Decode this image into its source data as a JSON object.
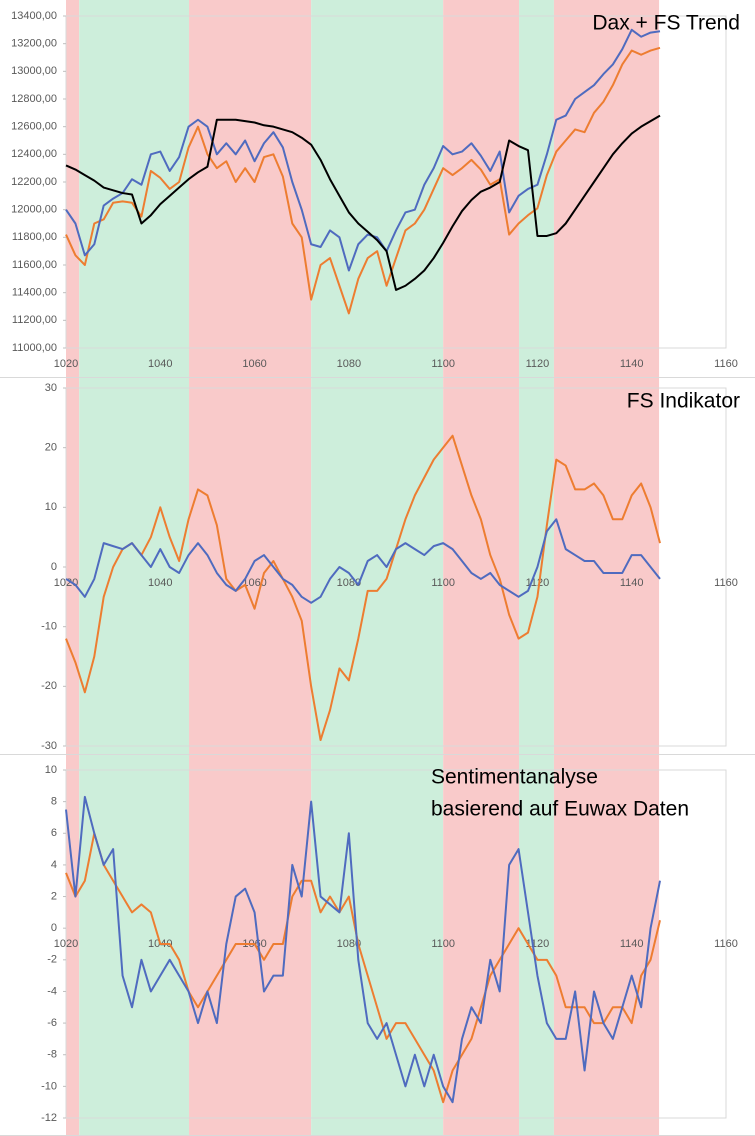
{
  "chart_data": [
    {
      "type": "line",
      "title": "Dax + FS Trend",
      "xlim": [
        1020,
        1160
      ],
      "xticks": [
        1020,
        1040,
        1060,
        1080,
        1100,
        1120,
        1140,
        1160
      ],
      "ylim": [
        11000,
        13400
      ],
      "yticks": [
        {
          "value": 11000,
          "label": "11000,00"
        },
        {
          "value": 11200,
          "label": "11200,00"
        },
        {
          "value": 11400,
          "label": "11400,00"
        },
        {
          "value": 11600,
          "label": "11600,00"
        },
        {
          "value": 11800,
          "label": "11800,00"
        },
        {
          "value": 12000,
          "label": "12000,00"
        },
        {
          "value": 12200,
          "label": "12200,00"
        },
        {
          "value": 12400,
          "label": "12400,00"
        },
        {
          "value": 12600,
          "label": "12600,00"
        },
        {
          "value": 12800,
          "label": "12800,00"
        },
        {
          "value": 13000,
          "label": "13000,00"
        },
        {
          "value": 13200,
          "label": "13200,00"
        },
        {
          "value": 13400,
          "label": "13400,00"
        }
      ],
      "regions": [
        {
          "start": 1020,
          "end": 1022.8,
          "color": "#f9caca"
        },
        {
          "start": 1022.8,
          "end": 1046.1,
          "color": "#cdeedb"
        },
        {
          "start": 1046.1,
          "end": 1072,
          "color": "#f9caca"
        },
        {
          "start": 1072,
          "end": 1100,
          "color": "#cdeedb"
        },
        {
          "start": 1100,
          "end": 1116.1,
          "color": "#f9caca"
        },
        {
          "start": 1116.1,
          "end": 1123.5,
          "color": "#cdeedb"
        },
        {
          "start": 1123.5,
          "end": 1145.8,
          "color": "#f9caca"
        }
      ],
      "x": [
        1020,
        1022,
        1024,
        1026,
        1028,
        1030,
        1032,
        1034,
        1036,
        1038,
        1040,
        1042,
        1044,
        1046,
        1048,
        1050,
        1052,
        1054,
        1056,
        1058,
        1060,
        1062,
        1064,
        1066,
        1068,
        1070,
        1072,
        1074,
        1076,
        1078,
        1080,
        1082,
        1084,
        1086,
        1088,
        1090,
        1092,
        1094,
        1096,
        1098,
        1100,
        1102,
        1104,
        1106,
        1108,
        1110,
        1112,
        1114,
        1116,
        1118,
        1120,
        1122,
        1124,
        1126,
        1128,
        1130,
        1132,
        1134,
        1136,
        1138,
        1140,
        1142,
        1144,
        1146
      ],
      "series": [
        {
          "color": "#ed7d31",
          "values": [
            11820,
            11670,
            11600,
            11900,
            11930,
            12050,
            12060,
            12050,
            11950,
            12280,
            12230,
            12150,
            12200,
            12450,
            12600,
            12400,
            12300,
            12350,
            12200,
            12300,
            12200,
            12380,
            12400,
            12240,
            11900,
            11800,
            11350,
            11600,
            11650,
            11450,
            11250,
            11500,
            11650,
            11700,
            11450,
            11650,
            11850,
            11900,
            12000,
            12150,
            12300,
            12250,
            12300,
            12360,
            12290,
            12180,
            12220,
            11820,
            11900,
            11960,
            12010,
            12250,
            12420,
            12500,
            12580,
            12560,
            12700,
            12780,
            12900,
            13050,
            13150,
            13120,
            13150,
            13170
          ]
        },
        {
          "color": "#4f6bbf",
          "values": [
            12000,
            11900,
            11670,
            11750,
            12030,
            12080,
            12120,
            12220,
            12180,
            12400,
            12420,
            12280,
            12380,
            12600,
            12650,
            12600,
            12400,
            12480,
            12400,
            12500,
            12350,
            12480,
            12560,
            12450,
            12200,
            12000,
            11750,
            11730,
            11850,
            11800,
            11560,
            11750,
            11820,
            11800,
            11700,
            11850,
            11980,
            12000,
            12180,
            12300,
            12460,
            12400,
            12420,
            12480,
            12390,
            12280,
            12420,
            11980,
            12100,
            12150,
            12180,
            12400,
            12650,
            12680,
            12800,
            12850,
            12900,
            12980,
            13050,
            13160,
            13300,
            13250,
            13280,
            13290
          ]
        },
        {
          "color": "#000000",
          "values": [
            12320,
            12290,
            12250,
            12210,
            12160,
            12140,
            12120,
            12110,
            11900,
            11960,
            12040,
            12100,
            12160,
            12220,
            12270,
            12310,
            12650,
            12650,
            12650,
            12640,
            12630,
            12610,
            12600,
            12580,
            12560,
            12520,
            12470,
            12360,
            12220,
            12100,
            11980,
            11900,
            11840,
            11780,
            11700,
            11420,
            11450,
            11500,
            11560,
            11650,
            11760,
            11880,
            11990,
            12070,
            12130,
            12160,
            12200,
            12500,
            12460,
            12430,
            11810,
            11810,
            11830,
            11900,
            12000,
            12100,
            12200,
            12300,
            12400,
            12480,
            12550,
            12600,
            12640,
            12680
          ]
        }
      ]
    },
    {
      "type": "line",
      "title": "FS Indikator",
      "xlim": [
        1020,
        1160
      ],
      "xticks": [
        1020,
        1040,
        1060,
        1080,
        1100,
        1120,
        1140,
        1160
      ],
      "ylim": [
        -30,
        30
      ],
      "yticks": [
        -30,
        -20,
        -10,
        0,
        10,
        20,
        30
      ],
      "regions": [
        {
          "start": 1020,
          "end": 1022.8,
          "color": "#f9caca"
        },
        {
          "start": 1022.8,
          "end": 1046.1,
          "color": "#cdeedb"
        },
        {
          "start": 1046.1,
          "end": 1072,
          "color": "#f9caca"
        },
        {
          "start": 1072,
          "end": 1100,
          "color": "#cdeedb"
        },
        {
          "start": 1100,
          "end": 1116.1,
          "color": "#f9caca"
        },
        {
          "start": 1116.1,
          "end": 1123.5,
          "color": "#cdeedb"
        },
        {
          "start": 1123.5,
          "end": 1145.8,
          "color": "#f9caca"
        }
      ],
      "x": [
        1020,
        1022,
        1024,
        1026,
        1028,
        1030,
        1032,
        1034,
        1036,
        1038,
        1040,
        1042,
        1044,
        1046,
        1048,
        1050,
        1052,
        1054,
        1056,
        1058,
        1060,
        1062,
        1064,
        1066,
        1068,
        1070,
        1072,
        1074,
        1076,
        1078,
        1080,
        1082,
        1084,
        1086,
        1088,
        1090,
        1092,
        1094,
        1096,
        1098,
        1100,
        1102,
        1104,
        1106,
        1108,
        1110,
        1112,
        1114,
        1116,
        1118,
        1120,
        1122,
        1124,
        1126,
        1128,
        1130,
        1132,
        1134,
        1136,
        1138,
        1140,
        1142,
        1144,
        1146
      ],
      "series": [
        {
          "color": "#ed7d31",
          "values": [
            -12,
            -16,
            -21,
            -15,
            -5,
            0,
            3,
            4,
            2,
            5,
            10,
            5,
            1,
            8,
            13,
            12,
            7,
            -2,
            -4,
            -3,
            -7,
            -1,
            1,
            -2,
            -5,
            -9,
            -20,
            -29,
            -24,
            -17,
            -19,
            -12,
            -4,
            -4,
            -2,
            3,
            8,
            12,
            15,
            18,
            20,
            22,
            17,
            12,
            8,
            2,
            -2,
            -8,
            -12,
            -11,
            -5,
            7,
            18,
            17,
            13,
            13,
            14,
            12,
            8,
            8,
            12,
            14,
            10,
            4
          ]
        },
        {
          "color": "#4f6bbf",
          "values": [
            -2,
            -3,
            -5,
            -2,
            4,
            3.5,
            3,
            4,
            2,
            0,
            3,
            0,
            -1,
            2,
            4,
            2,
            -1,
            -3,
            -4,
            -2,
            1,
            2,
            0,
            -2,
            -3,
            -5,
            -6,
            -5,
            -2,
            0,
            -1,
            -3,
            1,
            2,
            0,
            3,
            4,
            3,
            2,
            3.5,
            4,
            3,
            1,
            -1,
            -2,
            -1,
            -3,
            -4,
            -5,
            -4,
            0,
            6,
            8,
            3,
            2,
            1,
            1,
            -1,
            -1,
            -1,
            2,
            2,
            0,
            -2
          ]
        }
      ]
    },
    {
      "type": "line",
      "title": [
        "Sentimentanalyse",
        "basierend auf Euwax Daten"
      ],
      "xlim": [
        1020,
        1160
      ],
      "xticks": [
        1020,
        1040,
        1060,
        1080,
        1100,
        1120,
        1140,
        1160
      ],
      "ylim": [
        -12,
        10
      ],
      "yticks": [
        -12,
        -10,
        -8,
        -6,
        -4,
        -2,
        0,
        2,
        4,
        6,
        8,
        10
      ],
      "regions": [
        {
          "start": 1020,
          "end": 1022.8,
          "color": "#f9caca"
        },
        {
          "start": 1022.8,
          "end": 1046.1,
          "color": "#cdeedb"
        },
        {
          "start": 1046.1,
          "end": 1072,
          "color": "#f9caca"
        },
        {
          "start": 1072,
          "end": 1100,
          "color": "#cdeedb"
        },
        {
          "start": 1100,
          "end": 1116.1,
          "color": "#f9caca"
        },
        {
          "start": 1116.1,
          "end": 1123.5,
          "color": "#cdeedb"
        },
        {
          "start": 1123.5,
          "end": 1145.8,
          "color": "#f9caca"
        }
      ],
      "x": [
        1020,
        1022,
        1024,
        1026,
        1028,
        1030,
        1032,
        1034,
        1036,
        1038,
        1040,
        1042,
        1044,
        1046,
        1048,
        1050,
        1052,
        1054,
        1056,
        1058,
        1060,
        1062,
        1064,
        1066,
        1068,
        1070,
        1072,
        1074,
        1076,
        1078,
        1080,
        1082,
        1084,
        1086,
        1088,
        1090,
        1092,
        1094,
        1096,
        1098,
        1100,
        1102,
        1104,
        1106,
        1108,
        1110,
        1112,
        1114,
        1116,
        1118,
        1120,
        1122,
        1124,
        1126,
        1128,
        1130,
        1132,
        1134,
        1136,
        1138,
        1140,
        1142,
        1144,
        1146
      ],
      "series": [
        {
          "color": "#ed7d31",
          "values": [
            3.5,
            2,
            3,
            6,
            4,
            3,
            2,
            1,
            1.5,
            1,
            -1,
            -1,
            -2,
            -4,
            -5,
            -4,
            -3,
            -2,
            -1,
            -1,
            -1,
            -2,
            -1,
            -1,
            2,
            3,
            3,
            1,
            2,
            1,
            2,
            -1,
            -3,
            -5,
            -7,
            -6,
            -6,
            -7,
            -8,
            -9,
            -11,
            -9,
            -8,
            -7,
            -5,
            -3,
            -2,
            -1,
            0,
            -1,
            -2,
            -2,
            -3,
            -5,
            -5,
            -5,
            -6,
            -6,
            -5,
            -5,
            -6,
            -3,
            -2,
            0.5
          ]
        },
        {
          "color": "#4f6bbf",
          "values": [
            7.5,
            2,
            8.3,
            6,
            4,
            5,
            -3,
            -5,
            -2,
            -4,
            -3,
            -2,
            -3,
            -4,
            -6,
            -4,
            -6,
            -1,
            2,
            2.5,
            1,
            -4,
            -3,
            -3,
            4,
            2,
            8,
            2,
            1.5,
            1,
            6,
            -2,
            -6,
            -7,
            -6,
            -8,
            -10,
            -8,
            -10,
            -8,
            -10,
            -11,
            -7,
            -5,
            -6,
            -2,
            -4,
            4,
            5,
            1,
            -3,
            -6,
            -7,
            -7,
            -4,
            -9,
            -4,
            -6,
            -7,
            -5,
            -3,
            -5,
            0,
            3
          ]
        }
      ]
    }
  ]
}
